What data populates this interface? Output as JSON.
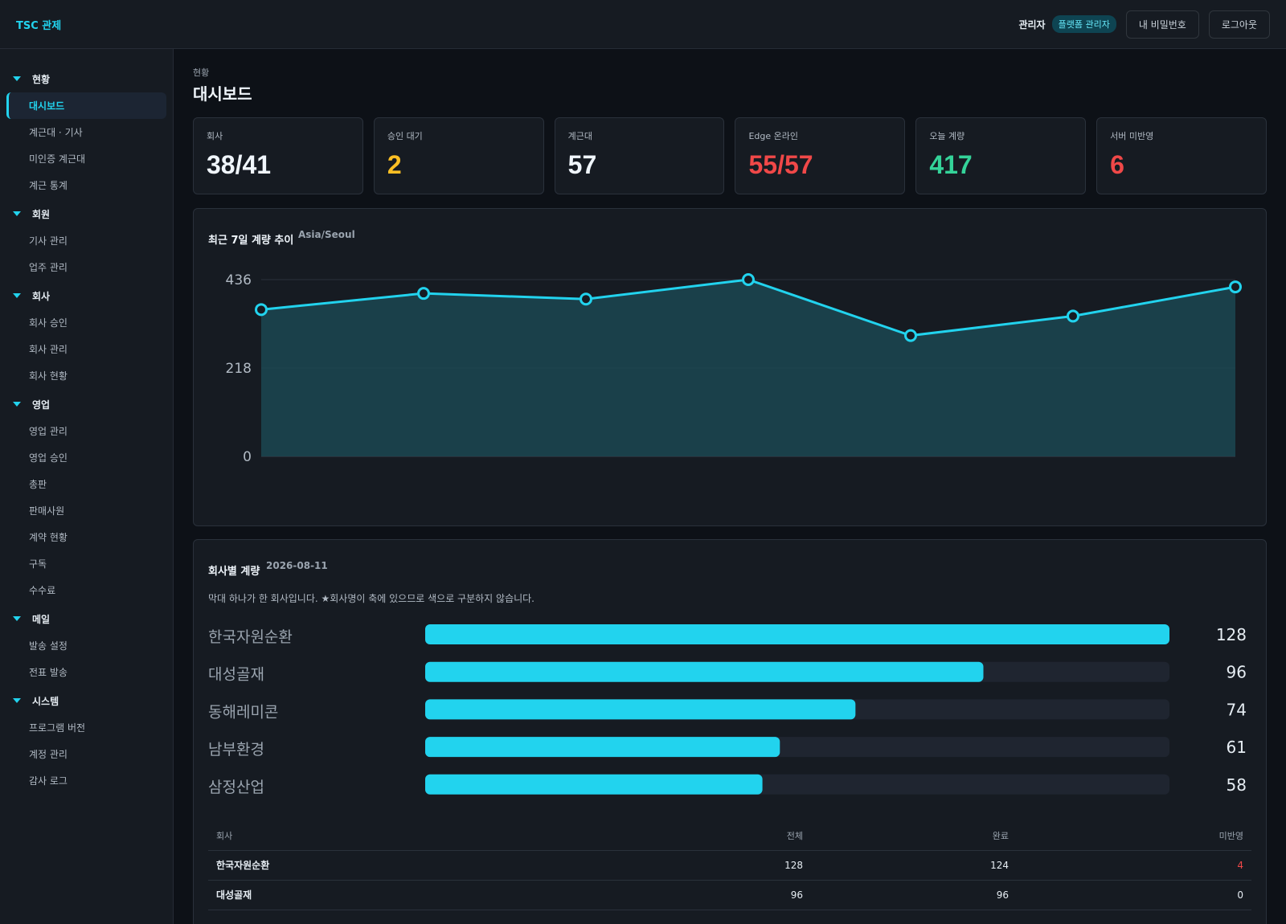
{
  "header": {
    "brand": "TSC 관제",
    "user_role": "관리자",
    "role_badge": "플랫폼 관리자",
    "password_button": "내 비밀번호",
    "logout_button": "로그아웃"
  },
  "sidebar": {
    "groups": [
      {
        "label": "현황",
        "items": [
          "대시보드",
          "계근대 · 기사",
          "미인증 계근대",
          "계근 통계"
        ]
      },
      {
        "label": "회원",
        "items": [
          "기사 관리",
          "업주 관리"
        ]
      },
      {
        "label": "회사",
        "items": [
          "회사 승인",
          "회사 관리",
          "회사 현황"
        ]
      },
      {
        "label": "영업",
        "items": [
          "영업 관리",
          "영업 승인",
          "총판",
          "판매사원",
          "계약 현황",
          "구독",
          "수수료"
        ]
      },
      {
        "label": "메일",
        "items": [
          "발송 설정",
          "전표 발송"
        ]
      },
      {
        "label": "시스템",
        "items": [
          "프로그램 버전",
          "계정 관리",
          "감사 로그"
        ]
      }
    ],
    "active": "대시보드"
  },
  "page": {
    "breadcrumb": "현황",
    "title": "대시보드"
  },
  "kpis": [
    {
      "label": "회사",
      "value": "38/41",
      "color": "#f0f6fc"
    },
    {
      "label": "승인 대기",
      "value": "2",
      "color": "#fbbf24"
    },
    {
      "label": "계근대",
      "value": "57",
      "color": "#f0f6fc"
    },
    {
      "label": "Edge 온라인",
      "value": "55/57",
      "color": "#f04848"
    },
    {
      "label": "오늘 계량",
      "value": "417",
      "color": "#34d399"
    },
    {
      "label": "서버 미반영",
      "value": "6",
      "color": "#f04848"
    }
  ],
  "trend_card": {
    "title": "최근 7일 계량 추이",
    "timezone": "Asia/Seoul"
  },
  "company_card": {
    "title": "회사별 계량",
    "date": "2026-08-11",
    "description": "막대 하나가 한 회사입니다. ★회사명이 축에 있으므로 색으로 구분하지 않습니다."
  },
  "table": {
    "headers": [
      "회사",
      "전체",
      "완료",
      "미반영"
    ],
    "rows": [
      {
        "company": "한국자원순환",
        "total": "128",
        "done": "124",
        "pending": "4"
      },
      {
        "company": "대성골재",
        "total": "96",
        "done": "96",
        "pending": "0"
      }
    ]
  },
  "chart_data": [
    {
      "type": "area",
      "ylim": [
        0,
        436
      ],
      "yticks": [
        "0",
        "218",
        "436"
      ],
      "values": [
        362,
        402,
        388,
        436,
        298,
        346,
        418
      ],
      "color": "#22d3ee",
      "grid": true
    },
    {
      "type": "bar",
      "orientation": "horizontal",
      "categories": [
        "한국자원순환",
        "대성골재",
        "동해레미콘",
        "남부환경",
        "삼정산업"
      ],
      "values": [
        128,
        96,
        74,
        61,
        58
      ],
      "xlim": [
        0,
        128
      ],
      "color": "#22d3ee"
    }
  ]
}
